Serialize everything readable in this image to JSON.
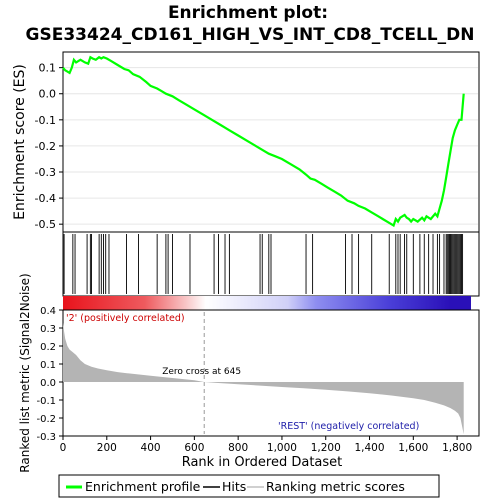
{
  "chart_data": {
    "type": "line",
    "title_line1": "Enrichment plot:",
    "title_line2": "GSE33424_CD161_HIGH_VS_INT_CD8_TCELL_DN",
    "top_panel": {
      "ylabel": "Enrichment score (ES)",
      "ylim": [
        -0.53,
        0.16
      ],
      "yticks": [
        "0.1",
        "0.0",
        "-0.1",
        "-0.2",
        "-0.3",
        "-0.4",
        "-0.5"
      ],
      "ytick_values": [
        0.1,
        0.0,
        -0.1,
        -0.2,
        -0.3,
        -0.4,
        -0.5
      ],
      "series": [
        {
          "name": "Enrichment profile",
          "color": "#00ff00",
          "x": [
            0,
            10,
            20,
            30,
            40,
            50,
            60,
            70,
            80,
            100,
            115,
            125,
            135,
            150,
            165,
            175,
            185,
            200,
            220,
            250,
            280,
            300,
            320,
            350,
            380,
            400,
            430,
            450,
            470,
            500,
            530,
            560,
            600,
            640,
            680,
            720,
            760,
            800,
            840,
            880,
            910,
            940,
            970,
            1000,
            1040,
            1080,
            1110,
            1130,
            1150,
            1180,
            1210,
            1240,
            1270,
            1300,
            1330,
            1350,
            1380,
            1410,
            1440,
            1460,
            1480,
            1500,
            1510,
            1520,
            1530,
            1540,
            1550,
            1560,
            1570,
            1580,
            1590,
            1600,
            1620,
            1640,
            1650,
            1660,
            1680,
            1700,
            1710,
            1720,
            1730,
            1740,
            1750,
            1760,
            1770,
            1780,
            1790,
            1800,
            1810,
            1820,
            1830
          ],
          "y": [
            0.1,
            0.09,
            0.085,
            0.08,
            0.1,
            0.13,
            0.12,
            0.125,
            0.13,
            0.12,
            0.115,
            0.14,
            0.135,
            0.13,
            0.14,
            0.135,
            0.14,
            0.135,
            0.125,
            0.11,
            0.095,
            0.09,
            0.075,
            0.065,
            0.045,
            0.03,
            0.02,
            0.01,
            0.0,
            -0.01,
            -0.025,
            -0.04,
            -0.06,
            -0.08,
            -0.1,
            -0.12,
            -0.14,
            -0.16,
            -0.18,
            -0.2,
            -0.215,
            -0.23,
            -0.24,
            -0.25,
            -0.27,
            -0.29,
            -0.31,
            -0.325,
            -0.33,
            -0.345,
            -0.36,
            -0.375,
            -0.39,
            -0.41,
            -0.42,
            -0.43,
            -0.44,
            -0.455,
            -0.47,
            -0.48,
            -0.49,
            -0.5,
            -0.505,
            -0.48,
            -0.49,
            -0.475,
            -0.47,
            -0.465,
            -0.475,
            -0.48,
            -0.49,
            -0.48,
            -0.49,
            -0.475,
            -0.485,
            -0.47,
            -0.48,
            -0.46,
            -0.47,
            -0.44,
            -0.41,
            -0.37,
            -0.32,
            -0.27,
            -0.22,
            -0.17,
            -0.14,
            -0.12,
            -0.1,
            -0.1,
            0.0
          ]
        }
      ]
    },
    "hits_x": [
      5,
      45,
      55,
      110,
      125,
      130,
      165,
      175,
      185,
      195,
      210,
      290,
      345,
      430,
      470,
      480,
      500,
      580,
      690,
      710,
      740,
      760,
      900,
      910,
      940,
      950,
      1110,
      1140,
      1290,
      1320,
      1350,
      1410,
      1490,
      1520,
      1530,
      1540,
      1560,
      1570,
      1600,
      1630,
      1650,
      1670,
      1690,
      1710,
      1720,
      1740,
      1750,
      1755,
      1760,
      1765,
      1770,
      1775,
      1780,
      1785,
      1790,
      1795,
      1800,
      1805,
      1810,
      1815,
      1820,
      1825
    ],
    "color_bar": {
      "stops": [
        {
          "offset": 0.0,
          "color": "#e8131c"
        },
        {
          "offset": 0.2,
          "color": "#ee5a5e"
        },
        {
          "offset": 0.3,
          "color": "#f8c4c5"
        },
        {
          "offset": 0.35,
          "color": "#ffffff"
        },
        {
          "offset": 0.55,
          "color": "#d0d0f8"
        },
        {
          "offset": 0.62,
          "color": "#8e8ef0"
        },
        {
          "offset": 0.8,
          "color": "#4a3fd8"
        },
        {
          "offset": 0.95,
          "color": "#2a10b8"
        },
        {
          "offset": 1.0,
          "color": "#2a10b8"
        }
      ]
    },
    "bottom_panel": {
      "ylabel": "Ranked list metric (Signal2Noise)",
      "ylim": [
        -0.3,
        0.4
      ],
      "yticks": [
        "0.4",
        "0.3",
        "0.2",
        "0.1",
        "0.0",
        "-0.1",
        "-0.2",
        "-0.3"
      ],
      "ytick_values": [
        0.4,
        0.3,
        0.2,
        0.1,
        0.0,
        -0.1,
        -0.2,
        -0.3
      ],
      "metric_x": [
        0,
        5,
        10,
        20,
        30,
        40,
        60,
        80,
        100,
        130,
        160,
        200,
        250,
        300,
        400,
        500,
        600,
        645,
        700,
        800,
        900,
        1000,
        1100,
        1200,
        1300,
        1400,
        1500,
        1600,
        1650,
        1700,
        1740,
        1770,
        1790,
        1805,
        1815,
        1820,
        1825,
        1830
      ],
      "metric_y": [
        0.33,
        0.28,
        0.24,
        0.2,
        0.18,
        0.17,
        0.15,
        0.12,
        0.1,
        0.085,
        0.075,
        0.065,
        0.055,
        0.048,
        0.035,
        0.022,
        0.01,
        0.0,
        -0.005,
        -0.012,
        -0.02,
        -0.028,
        -0.035,
        -0.043,
        -0.052,
        -0.062,
        -0.075,
        -0.09,
        -0.1,
        -0.115,
        -0.13,
        -0.145,
        -0.16,
        -0.175,
        -0.2,
        -0.23,
        -0.26,
        -0.29
      ],
      "zero_cross_label": "Zero cross at 645",
      "zero_cross_x": 645,
      "pos_label": "'2' (positively correlated)",
      "neg_label": "'REST' (negatively correlated)"
    },
    "xlabel": "Rank in Ordered Dataset",
    "xlim": [
      0,
      1900
    ],
    "xticks": [
      "0",
      "200",
      "400",
      "600",
      "800",
      "1,000",
      "1,200",
      "1,400",
      "1,600",
      "1,800"
    ],
    "xtick_values": [
      0,
      200,
      400,
      600,
      800,
      1000,
      1200,
      1400,
      1600,
      1800
    ],
    "legend": {
      "placement": "bottom",
      "items": [
        {
          "label": "Enrichment profile",
          "color": "#00ff00"
        },
        {
          "label": "Hits",
          "color": "#000000"
        },
        {
          "label": "Ranking metric scores",
          "color": "#c0c0c0"
        }
      ]
    }
  }
}
